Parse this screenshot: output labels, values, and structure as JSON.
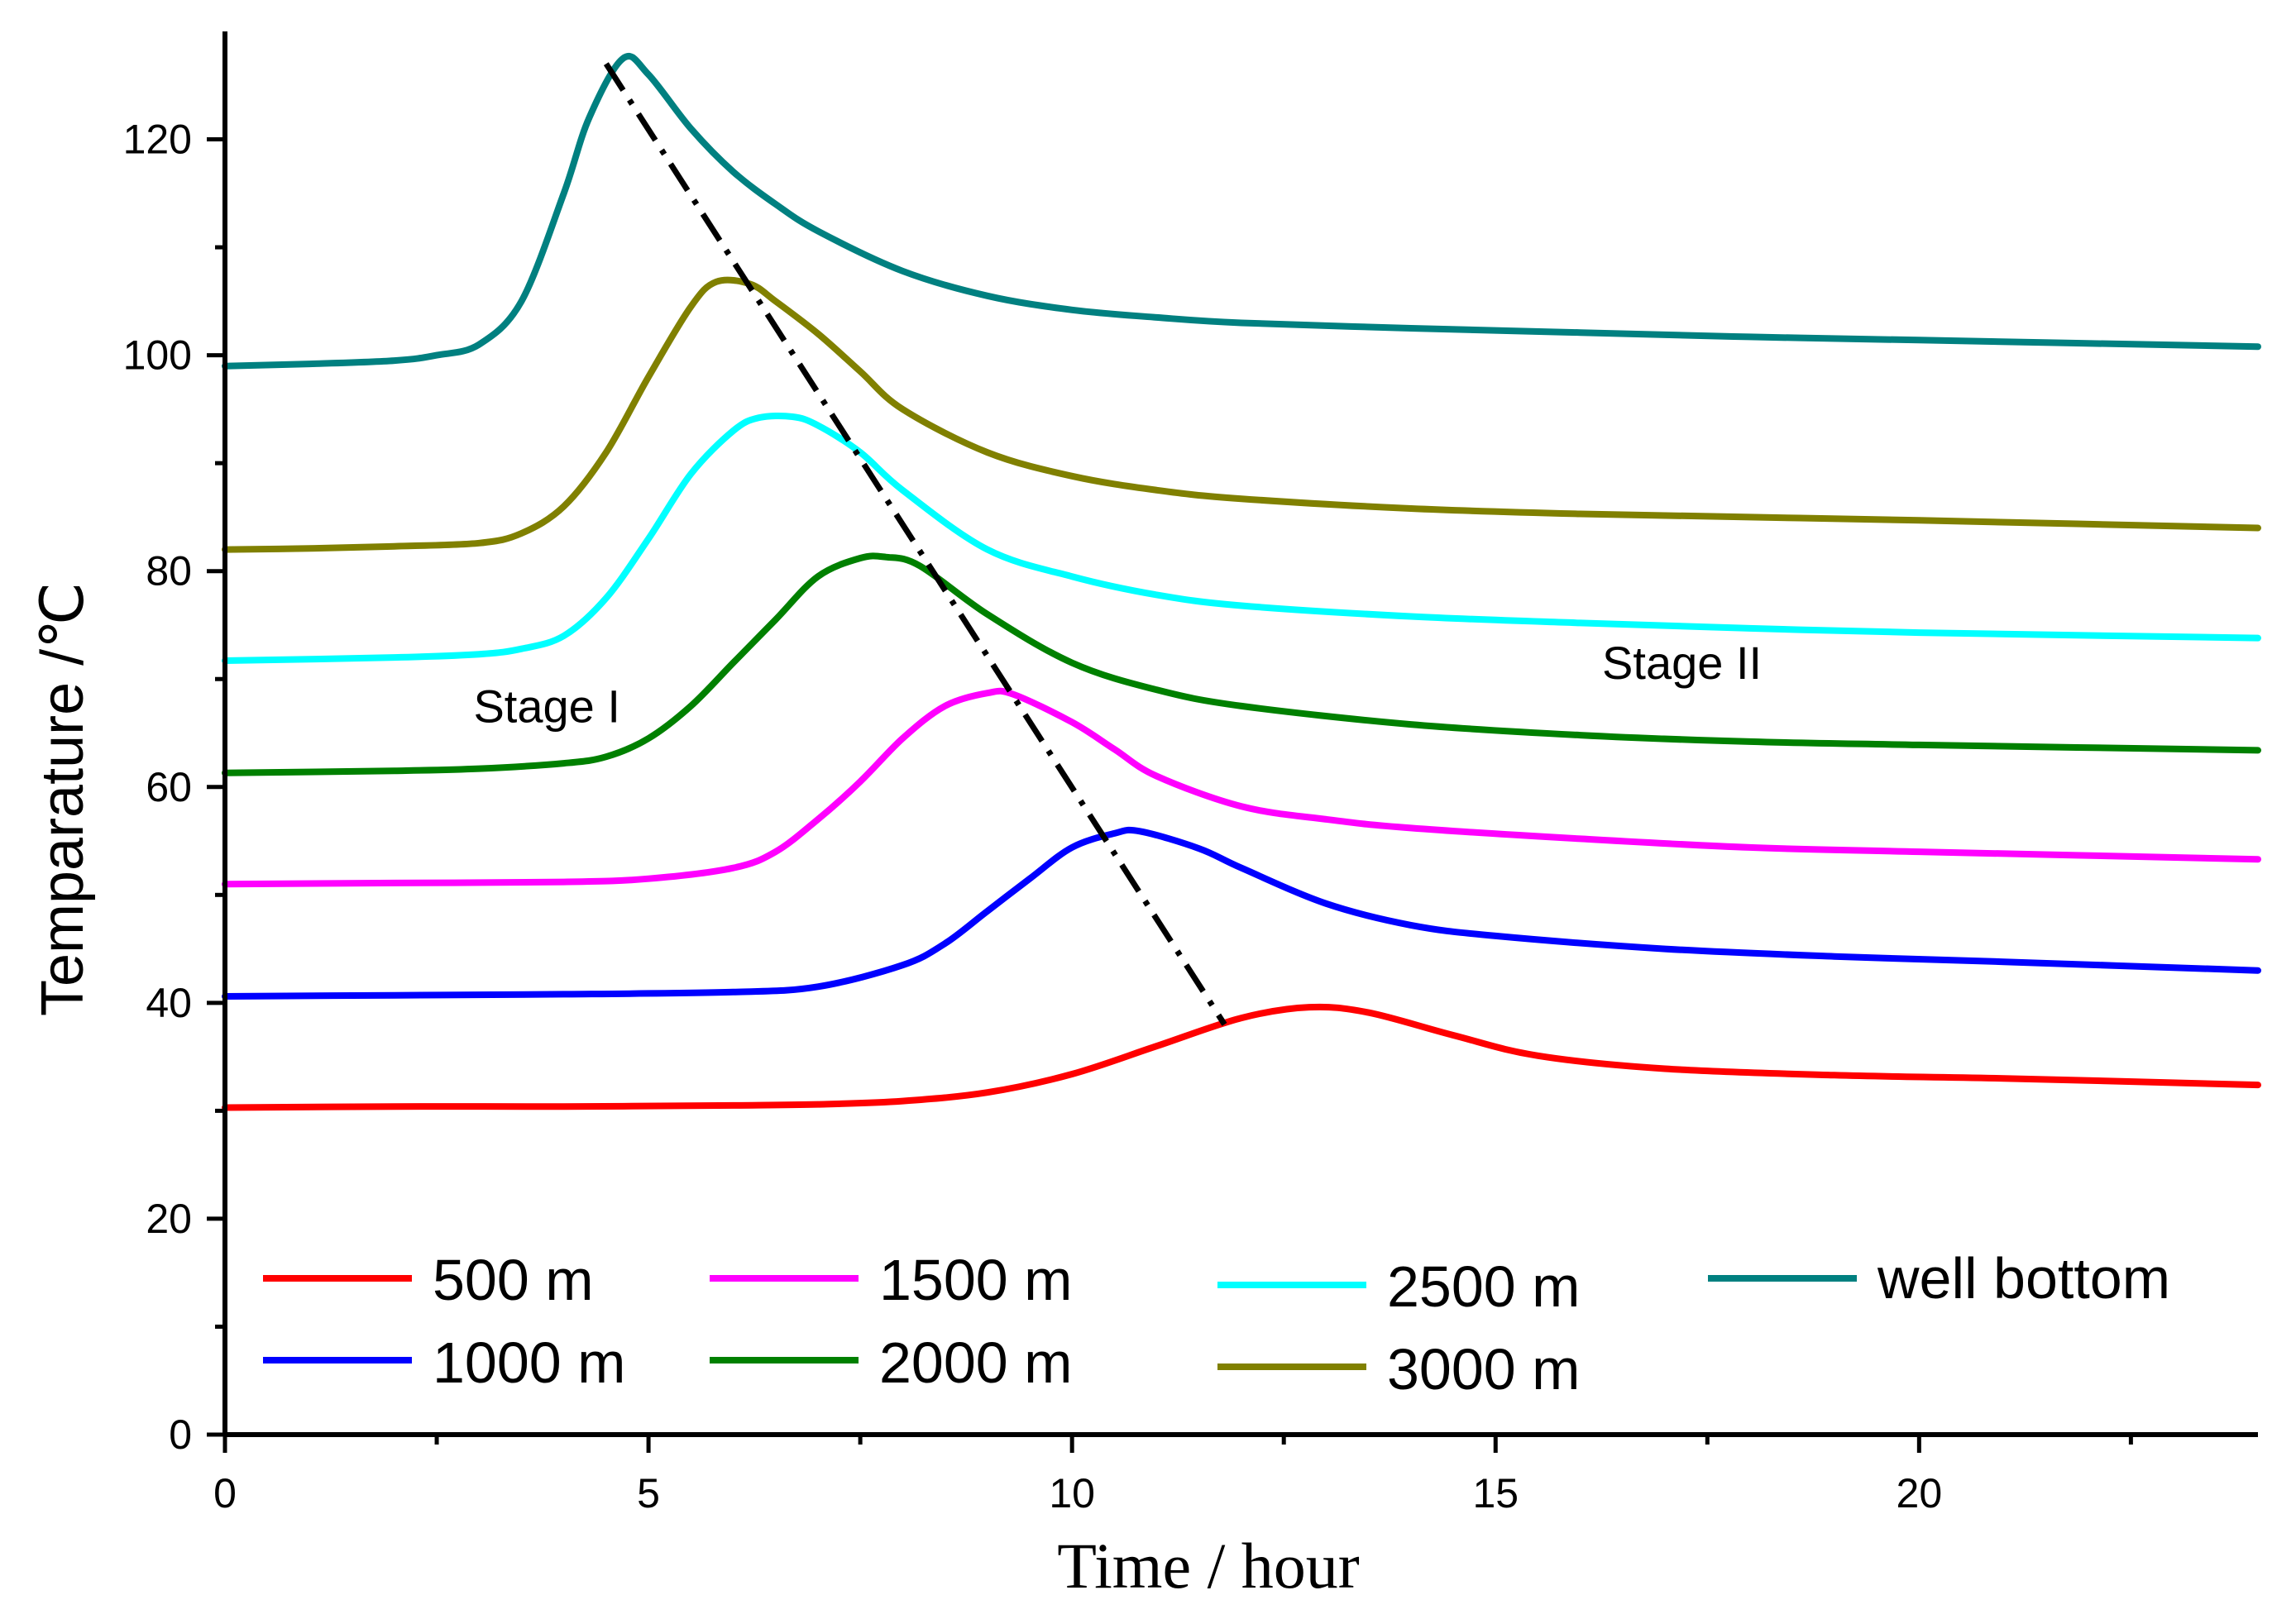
{
  "chart_data": {
    "type": "line",
    "title": "",
    "xlabel": "Time / hour",
    "ylabel": "Temparature /℃",
    "xlim": [
      0,
      24
    ],
    "ylim": [
      0,
      130
    ],
    "xticks": [
      0,
      5,
      10,
      15,
      20
    ],
    "yticks": [
      0,
      20,
      40,
      60,
      80,
      100,
      120
    ],
    "grid": false,
    "legend_position": "bottom",
    "annotations": [
      {
        "text": "Stage I",
        "x": 3.8,
        "y": 66
      },
      {
        "text": "Stage II",
        "x": 17.2,
        "y": 70
      }
    ],
    "peak_trend_line": {
      "style": "dash-dot",
      "color": "#000000",
      "x": [
        4.5,
        11.8
      ],
      "y": [
        127,
        38
      ]
    },
    "series": [
      {
        "name": "500 m",
        "color": "#ff0000",
        "x": [
          0,
          2,
          4,
          6,
          7,
          8,
          9,
          10,
          11,
          12,
          12.8,
          13.5,
          14.5,
          15.5,
          17,
          19,
          21,
          24
        ],
        "y": [
          30.3,
          30.4,
          30.4,
          30.5,
          30.6,
          30.9,
          31.7,
          33.4,
          36.0,
          38.6,
          39.6,
          39.1,
          37.0,
          35.1,
          33.9,
          33.3,
          33.0,
          32.4
        ]
      },
      {
        "name": "1000 m",
        "color": "#0000ff",
        "x": [
          0,
          2,
          4,
          6,
          7,
          8,
          8.5,
          9,
          9.5,
          10,
          10.5,
          10.8,
          11.5,
          12,
          13,
          14,
          15,
          17,
          19,
          21,
          24
        ],
        "y": [
          40.6,
          40.7,
          40.8,
          41.0,
          41.5,
          43.5,
          45.5,
          48.5,
          51.5,
          54.4,
          55.7,
          55.9,
          54.3,
          52.5,
          49.2,
          47.2,
          46.2,
          45.0,
          44.3,
          43.8,
          43.0
        ]
      },
      {
        "name": "1500 m",
        "color": "#ff00ff",
        "x": [
          0,
          2,
          4,
          5,
          6,
          6.5,
          7,
          7.5,
          8,
          8.5,
          9,
          9.3,
          10,
          10.5,
          11,
          12,
          13,
          14,
          16,
          18,
          20,
          24
        ],
        "y": [
          51.0,
          51.1,
          51.2,
          51.5,
          52.5,
          54.0,
          57.0,
          60.5,
          64.5,
          67.5,
          68.7,
          68.6,
          66.0,
          63.5,
          61.0,
          58.2,
          57.0,
          56.2,
          55.2,
          54.4,
          54.0,
          53.3
        ]
      },
      {
        "name": "2000 m",
        "color": "#008000",
        "x": [
          0,
          2,
          3,
          4,
          4.5,
          5,
          5.5,
          6,
          6.5,
          7,
          7.5,
          7.8,
          8.2,
          9,
          10,
          11,
          12,
          14,
          16,
          18,
          20,
          24
        ],
        "y": [
          61.3,
          61.5,
          61.7,
          62.2,
          62.8,
          64.5,
          67.5,
          71.5,
          75.5,
          79.5,
          81.2,
          81.3,
          80.5,
          76.0,
          71.5,
          69.0,
          67.5,
          65.8,
          64.8,
          64.2,
          63.9,
          63.4
        ]
      },
      {
        "name": "2500 m",
        "color": "#00ffff",
        "x": [
          0,
          2,
          3,
          3.5,
          4,
          4.5,
          5,
          5.5,
          6,
          6.3,
          6.7,
          7,
          7.5,
          8,
          9,
          10,
          11,
          12,
          14,
          16,
          18,
          20,
          24
        ],
        "y": [
          71.7,
          72.0,
          72.3,
          72.8,
          74.0,
          77.5,
          83.0,
          89.0,
          93.0,
          94.2,
          94.3,
          93.5,
          91.0,
          87.5,
          82.0,
          79.5,
          77.8,
          76.8,
          75.8,
          75.2,
          74.7,
          74.3,
          73.8
        ]
      },
      {
        "name": "3000 m",
        "color": "#808000",
        "x": [
          0,
          1,
          2,
          3,
          3.5,
          4,
          4.5,
          5,
          5.5,
          5.8,
          6.2,
          6.5,
          7,
          7.5,
          8,
          9,
          10,
          11,
          12,
          14,
          16,
          18,
          20,
          24
        ],
        "y": [
          82.0,
          82.1,
          82.3,
          82.6,
          83.5,
          86.0,
          91.0,
          98.0,
          104.5,
          106.8,
          106.6,
          105.0,
          102.0,
          98.5,
          95.0,
          91.0,
          88.8,
          87.5,
          86.7,
          85.8,
          85.3,
          85.0,
          84.7,
          84.0
        ]
      },
      {
        "name": "well bottom",
        "color": "#008080",
        "x": [
          0,
          1,
          2,
          2.5,
          3,
          3.5,
          4,
          4.3,
          4.7,
          5,
          5.5,
          6,
          6.5,
          7,
          8,
          9,
          10,
          11,
          12,
          14,
          16,
          18,
          20,
          24
        ],
        "y": [
          99.0,
          99.2,
          99.5,
          100.0,
          101.0,
          105.0,
          115.0,
          122.0,
          127.5,
          126.0,
          121.0,
          117.0,
          114.0,
          111.5,
          107.8,
          105.5,
          104.2,
          103.5,
          103.0,
          102.5,
          102.1,
          101.7,
          101.4,
          100.8
        ]
      }
    ]
  }
}
